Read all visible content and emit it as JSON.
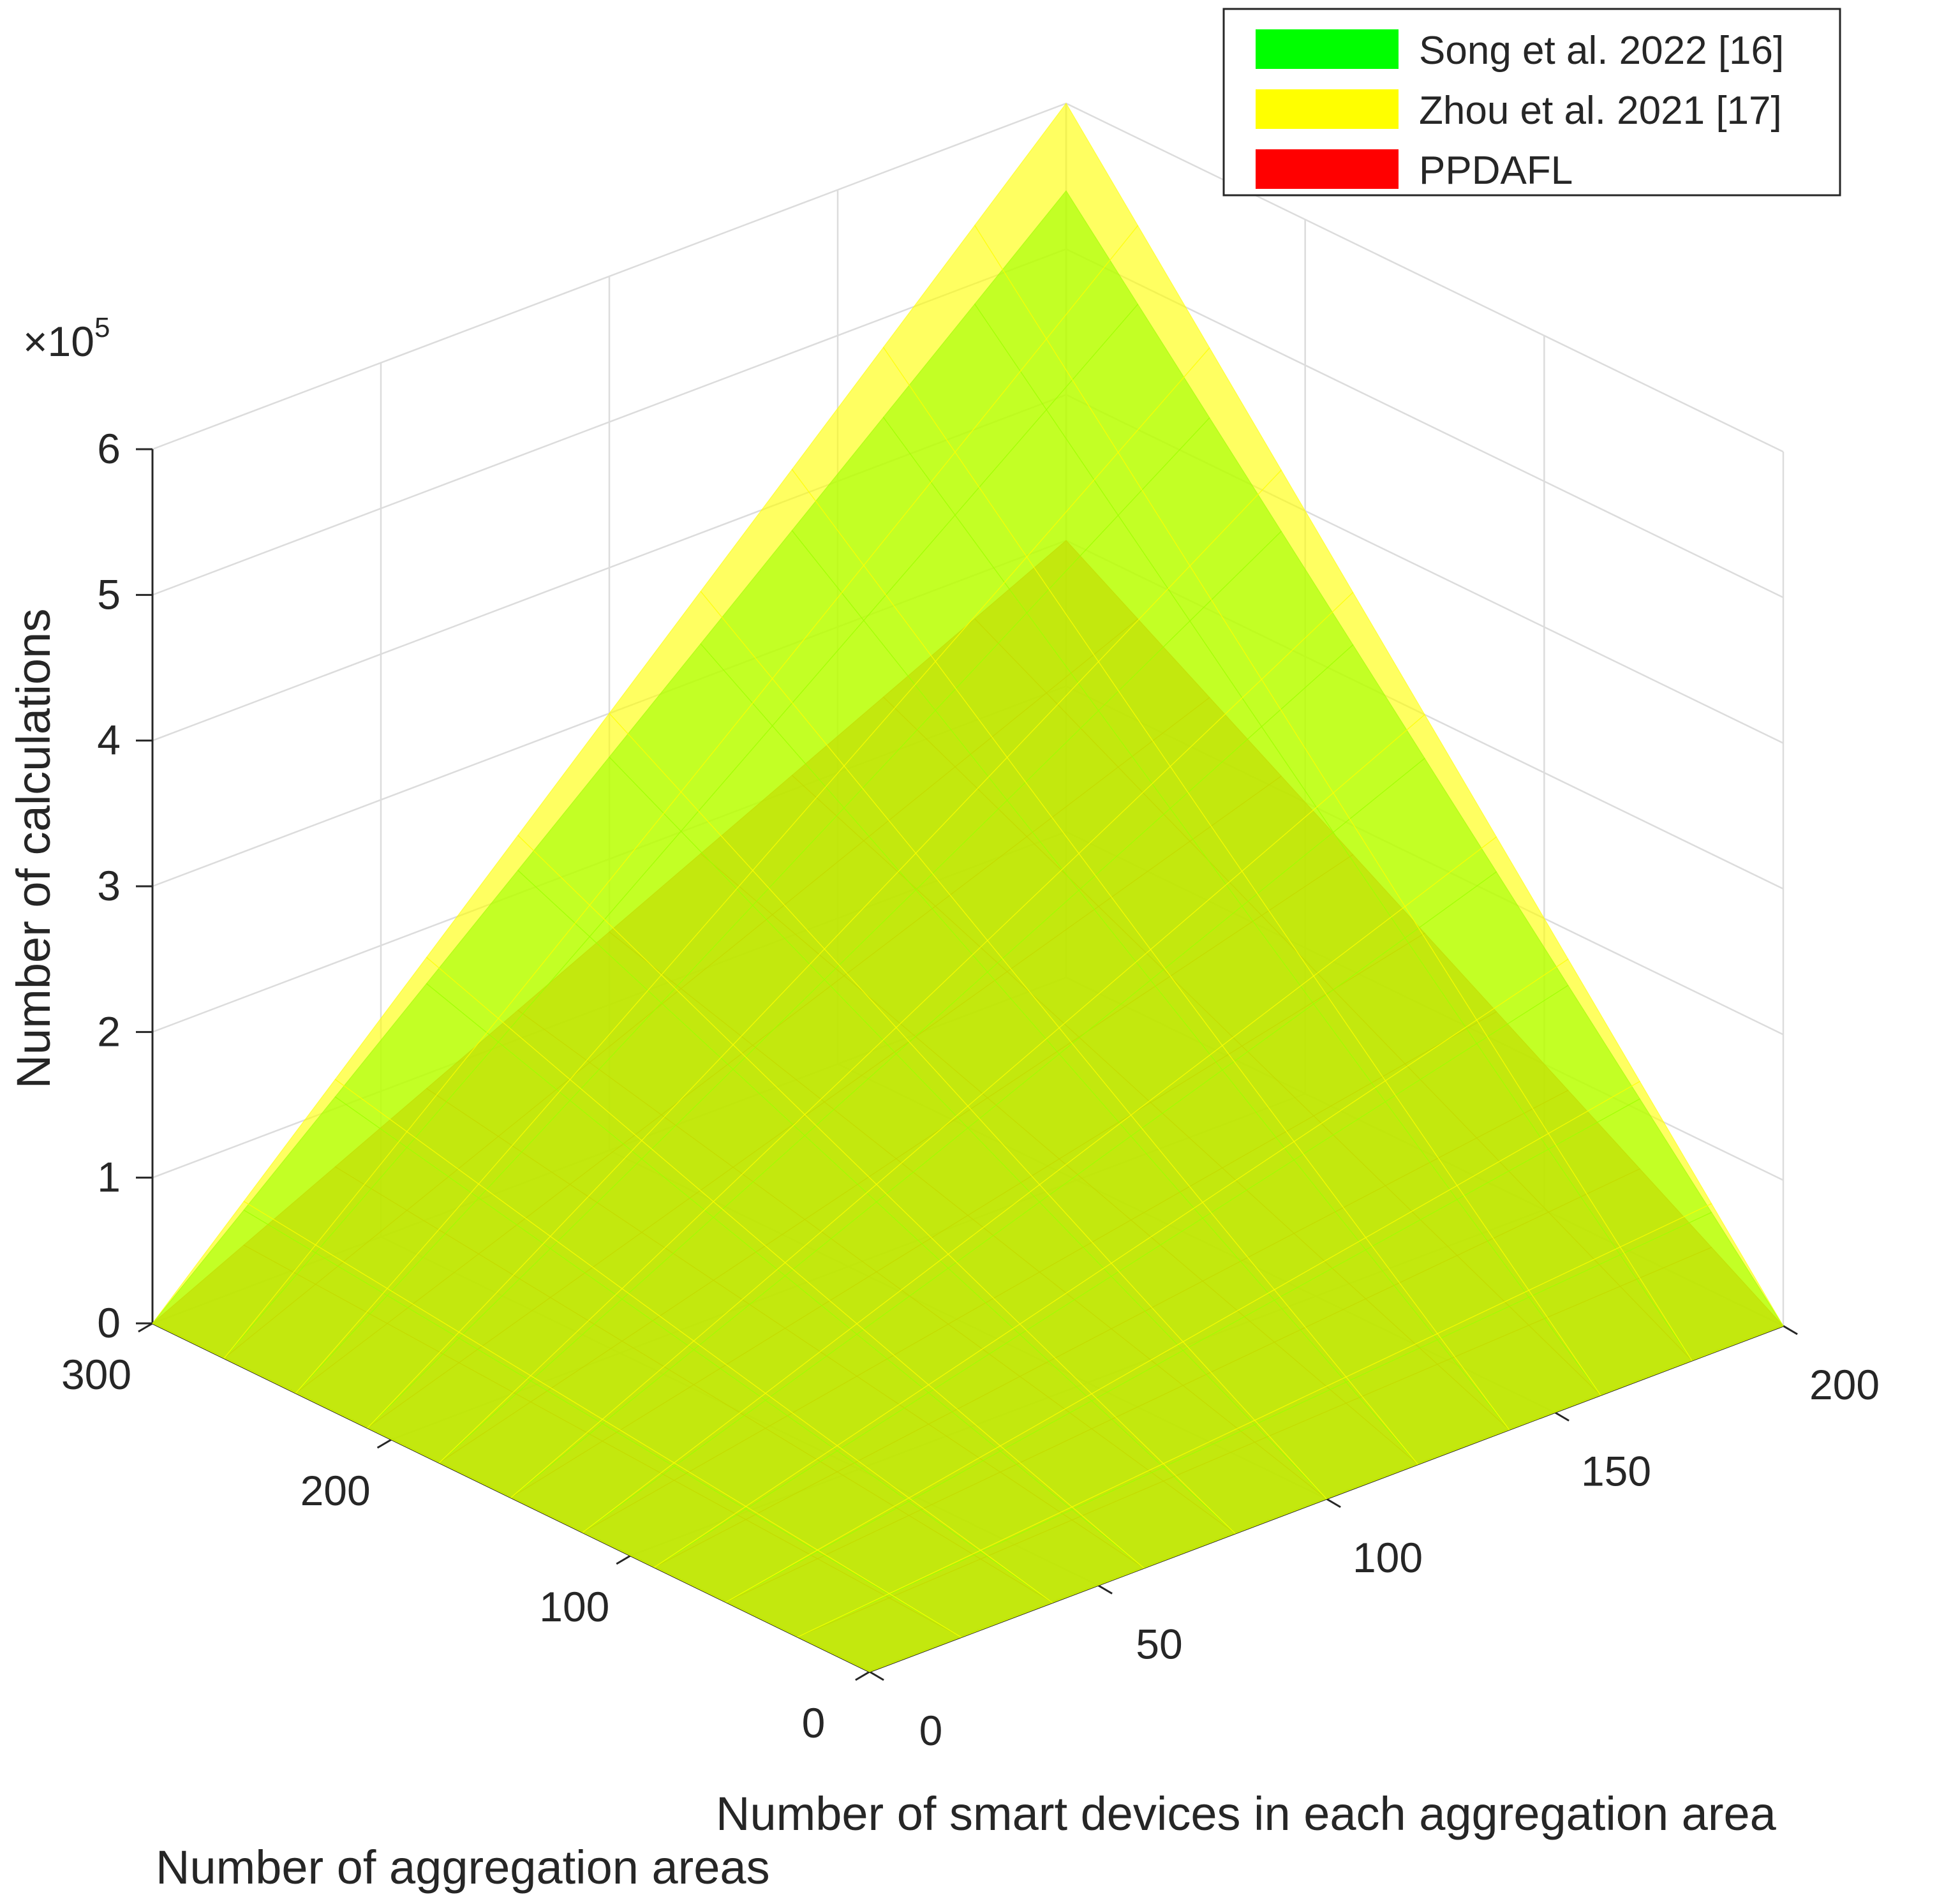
{
  "chart_data": {
    "type": "surface3d",
    "x_axis": {
      "label": "Number of smart devices in each aggregation area",
      "ticks": [
        0,
        50,
        100,
        150,
        200
      ],
      "lim": [
        0,
        200
      ]
    },
    "y_axis": {
      "label": "Number of aggregation areas",
      "ticks": [
        0,
        100,
        200,
        300
      ],
      "lim": [
        0,
        300
      ]
    },
    "z_axis": {
      "label": "Number of calculations",
      "ticks": [
        0,
        1,
        2,
        3,
        4,
        5,
        6
      ],
      "lim": [
        0,
        6
      ],
      "exponent_label": "×10",
      "exponent_power": "5"
    },
    "grid": true,
    "legend_position": "top-right",
    "series": [
      {
        "name": "Song et al. 2022 [16]",
        "color": "#00ff00",
        "corner_z": {
          "x0y0": 0,
          "x200y0": 0,
          "x0y300": 0,
          "x200y300": 5.4
        }
      },
      {
        "name": "Zhou et al. 2021 [17]",
        "color": "#ffff00",
        "corner_z": {
          "x0y0": 0,
          "x200y0": 0,
          "x0y300": 0,
          "x200y300": 6.0
        }
      },
      {
        "name": "PPDAFL",
        "color": "#ff0000",
        "corner_z": {
          "x0y0": 0,
          "x200y0": 0,
          "x0y300": 0,
          "x200y300": 3.0
        }
      }
    ]
  }
}
